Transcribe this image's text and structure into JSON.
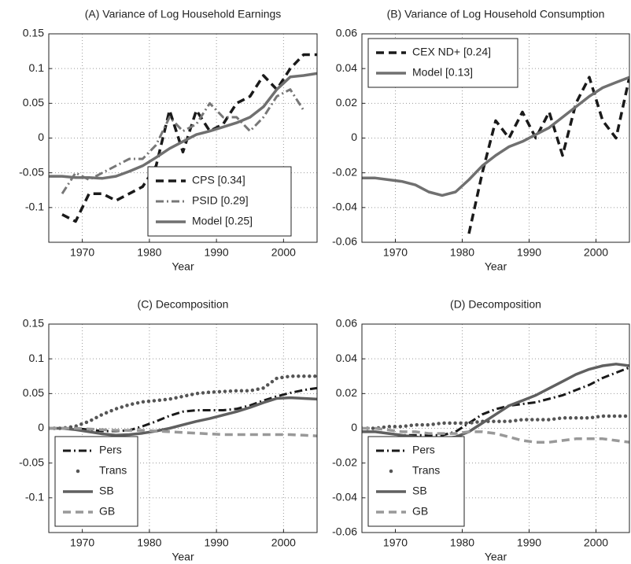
{
  "chart_data": [
    {
      "type": "line",
      "title": "(A) Variance of Log Household Earnings",
      "xlabel": "Year",
      "x": [
        1965,
        1967,
        1969,
        1971,
        1973,
        1975,
        1977,
        1979,
        1981,
        1983,
        1985,
        1987,
        1989,
        1991,
        1993,
        1995,
        1997,
        1999,
        2001,
        2003,
        2005
      ],
      "xlim": [
        1965,
        2005
      ],
      "xticks": [
        1970,
        1980,
        1990,
        2000
      ],
      "ylim": [
        -0.15,
        0.15
      ],
      "yticks": [
        -0.1,
        -0.05,
        0,
        0.05,
        0.1,
        0.15
      ],
      "grid": true,
      "legend": "lower right",
      "series": [
        {
          "name": "CPS [0.34]",
          "color": "#1a1a1a",
          "style": "dashed",
          "values": [
            null,
            -0.11,
            -0.12,
            -0.08,
            -0.08,
            -0.09,
            -0.08,
            -0.07,
            -0.04,
            0.04,
            -0.02,
            0.04,
            0.01,
            0.02,
            0.05,
            0.06,
            0.09,
            0.07,
            0.1,
            0.12,
            0.12
          ]
        },
        {
          "name": "PSID [0.29]",
          "color": "#777777",
          "style": "dashdot",
          "values": [
            null,
            -0.08,
            -0.05,
            -0.06,
            -0.05,
            -0.04,
            -0.03,
            -0.03,
            -0.01,
            0.03,
            0.01,
            0.02,
            0.05,
            0.03,
            0.03,
            0.01,
            0.03,
            0.06,
            0.07,
            0.04,
            null
          ]
        },
        {
          "name": "Model [0.25]",
          "color": "#707070",
          "style": "solid",
          "values": [
            -0.055,
            -0.055,
            -0.057,
            -0.057,
            -0.058,
            -0.055,
            -0.048,
            -0.04,
            -0.028,
            -0.015,
            -0.005,
            0.005,
            0.01,
            0.016,
            0.022,
            0.03,
            0.045,
            0.07,
            0.088,
            0.09,
            0.093
          ]
        }
      ]
    },
    {
      "type": "line",
      "title": "(B) Variance of Log Household Consumption",
      "xlabel": "Year",
      "x": [
        1965,
        1967,
        1969,
        1971,
        1973,
        1975,
        1977,
        1979,
        1981,
        1983,
        1985,
        1987,
        1989,
        1991,
        1993,
        1995,
        1997,
        1999,
        2001,
        2003,
        2005
      ],
      "xlim": [
        1965,
        2005
      ],
      "xticks": [
        1970,
        1980,
        1990,
        2000
      ],
      "ylim": [
        -0.06,
        0.06
      ],
      "yticks": [
        -0.06,
        -0.04,
        -0.02,
        0,
        0.02,
        0.04,
        0.06
      ],
      "grid": true,
      "legend": "upper left",
      "series": [
        {
          "name": "CEX ND+ [0.24]",
          "color": "#1a1a1a",
          "style": "dashed",
          "values": [
            null,
            null,
            null,
            null,
            null,
            null,
            null,
            null,
            -0.055,
            -0.02,
            0.01,
            0.0,
            0.015,
            0.0,
            0.015,
            -0.01,
            0.02,
            0.035,
            0.01,
            0.0,
            0.035
          ]
        },
        {
          "name": "Model [0.13]",
          "color": "#707070",
          "style": "solid",
          "values": [
            -0.023,
            -0.023,
            -0.024,
            -0.025,
            -0.027,
            -0.031,
            -0.033,
            -0.031,
            -0.024,
            -0.016,
            -0.01,
            -0.005,
            -0.002,
            0.002,
            0.006,
            0.012,
            0.018,
            0.024,
            0.029,
            0.032,
            0.035
          ]
        }
      ]
    },
    {
      "type": "line",
      "title": "(C) Decomposition",
      "xlabel": "Year",
      "x": [
        1965,
        1967,
        1969,
        1971,
        1973,
        1975,
        1977,
        1979,
        1981,
        1983,
        1985,
        1987,
        1989,
        1991,
        1993,
        1995,
        1997,
        1999,
        2001,
        2003,
        2005
      ],
      "xlim": [
        1965,
        2005
      ],
      "xticks": [
        1970,
        1980,
        1990,
        2000
      ],
      "ylim": [
        -0.15,
        0.15
      ],
      "yticks": [
        -0.1,
        -0.05,
        0,
        0.05,
        0.1,
        0.15
      ],
      "grid": true,
      "legend": "lower left",
      "series": [
        {
          "name": "Pers",
          "color": "#1a1a1a",
          "style": "dashdot",
          "values": [
            0,
            0,
            0,
            -0.002,
            -0.004,
            -0.004,
            -0.003,
            0.003,
            0.01,
            0.018,
            0.024,
            0.026,
            0.026,
            0.026,
            0.028,
            0.033,
            0.04,
            0.046,
            0.051,
            0.055,
            0.058
          ]
        },
        {
          "name": "Trans",
          "color": "#555555",
          "style": "dotted",
          "values": [
            0,
            0,
            0.003,
            0.01,
            0.02,
            0.028,
            0.034,
            0.038,
            0.04,
            0.042,
            0.046,
            0.05,
            0.052,
            0.053,
            0.054,
            0.054,
            0.058,
            0.072,
            0.075,
            0.075,
            0.075
          ]
        },
        {
          "name": "SB",
          "color": "#606060",
          "style": "solid",
          "values": [
            0,
            0,
            -0.002,
            -0.005,
            -0.008,
            -0.01,
            -0.009,
            -0.007,
            -0.004,
            0,
            0.005,
            0.01,
            0.014,
            0.019,
            0.024,
            0.03,
            0.037,
            0.043,
            0.044,
            0.043,
            0.042
          ]
        },
        {
          "name": "GB",
          "color": "#999999",
          "style": "dashed",
          "values": [
            0,
            0,
            0,
            -0.001,
            -0.002,
            -0.003,
            -0.003,
            -0.003,
            -0.004,
            -0.005,
            -0.006,
            -0.007,
            -0.008,
            -0.009,
            -0.009,
            -0.009,
            -0.009,
            -0.009,
            -0.009,
            -0.01,
            -0.011
          ]
        }
      ]
    },
    {
      "type": "line",
      "title": "(D) Decomposition",
      "xlabel": "Year",
      "x": [
        1965,
        1967,
        1969,
        1971,
        1973,
        1975,
        1977,
        1979,
        1981,
        1983,
        1985,
        1987,
        1989,
        1991,
        1993,
        1995,
        1997,
        1999,
        2001,
        2003,
        2005
      ],
      "xlim": [
        1965,
        2005
      ],
      "xticks": [
        1970,
        1980,
        1990,
        2000
      ],
      "ylim": [
        -0.06,
        0.06
      ],
      "yticks": [
        -0.06,
        -0.04,
        -0.02,
        0,
        0.02,
        0.04,
        0.06
      ],
      "grid": true,
      "legend": "lower left",
      "series": [
        {
          "name": "Pers",
          "color": "#1a1a1a",
          "style": "dashdot",
          "values": [
            -0.002,
            -0.002,
            -0.003,
            -0.004,
            -0.004,
            -0.004,
            -0.004,
            -0.002,
            0.003,
            0.008,
            0.011,
            0.013,
            0.014,
            0.015,
            0.017,
            0.019,
            0.022,
            0.025,
            0.029,
            0.032,
            0.035
          ]
        },
        {
          "name": "Trans",
          "color": "#555555",
          "style": "dotted",
          "values": [
            0,
            0,
            0.001,
            0.001,
            0.002,
            0.002,
            0.003,
            0.003,
            0.003,
            0.004,
            0.004,
            0.004,
            0.005,
            0.005,
            0.005,
            0.006,
            0.006,
            0.006,
            0.007,
            0.007,
            0.007
          ]
        },
        {
          "name": "SB",
          "color": "#606060",
          "style": "solid",
          "values": [
            -0.002,
            -0.002,
            -0.003,
            -0.004,
            -0.005,
            -0.006,
            -0.006,
            -0.005,
            -0.002,
            0.003,
            0.008,
            0.013,
            0.016,
            0.019,
            0.023,
            0.027,
            0.031,
            0.034,
            0.036,
            0.037,
            0.036
          ]
        },
        {
          "name": "GB",
          "color": "#999999",
          "style": "dashed",
          "values": [
            0,
            0,
            -0.001,
            -0.002,
            -0.002,
            -0.003,
            -0.003,
            -0.003,
            -0.002,
            -0.002,
            -0.003,
            -0.005,
            -0.007,
            -0.008,
            -0.008,
            -0.007,
            -0.006,
            -0.006,
            -0.006,
            -0.007,
            -0.008
          ]
        }
      ]
    }
  ]
}
